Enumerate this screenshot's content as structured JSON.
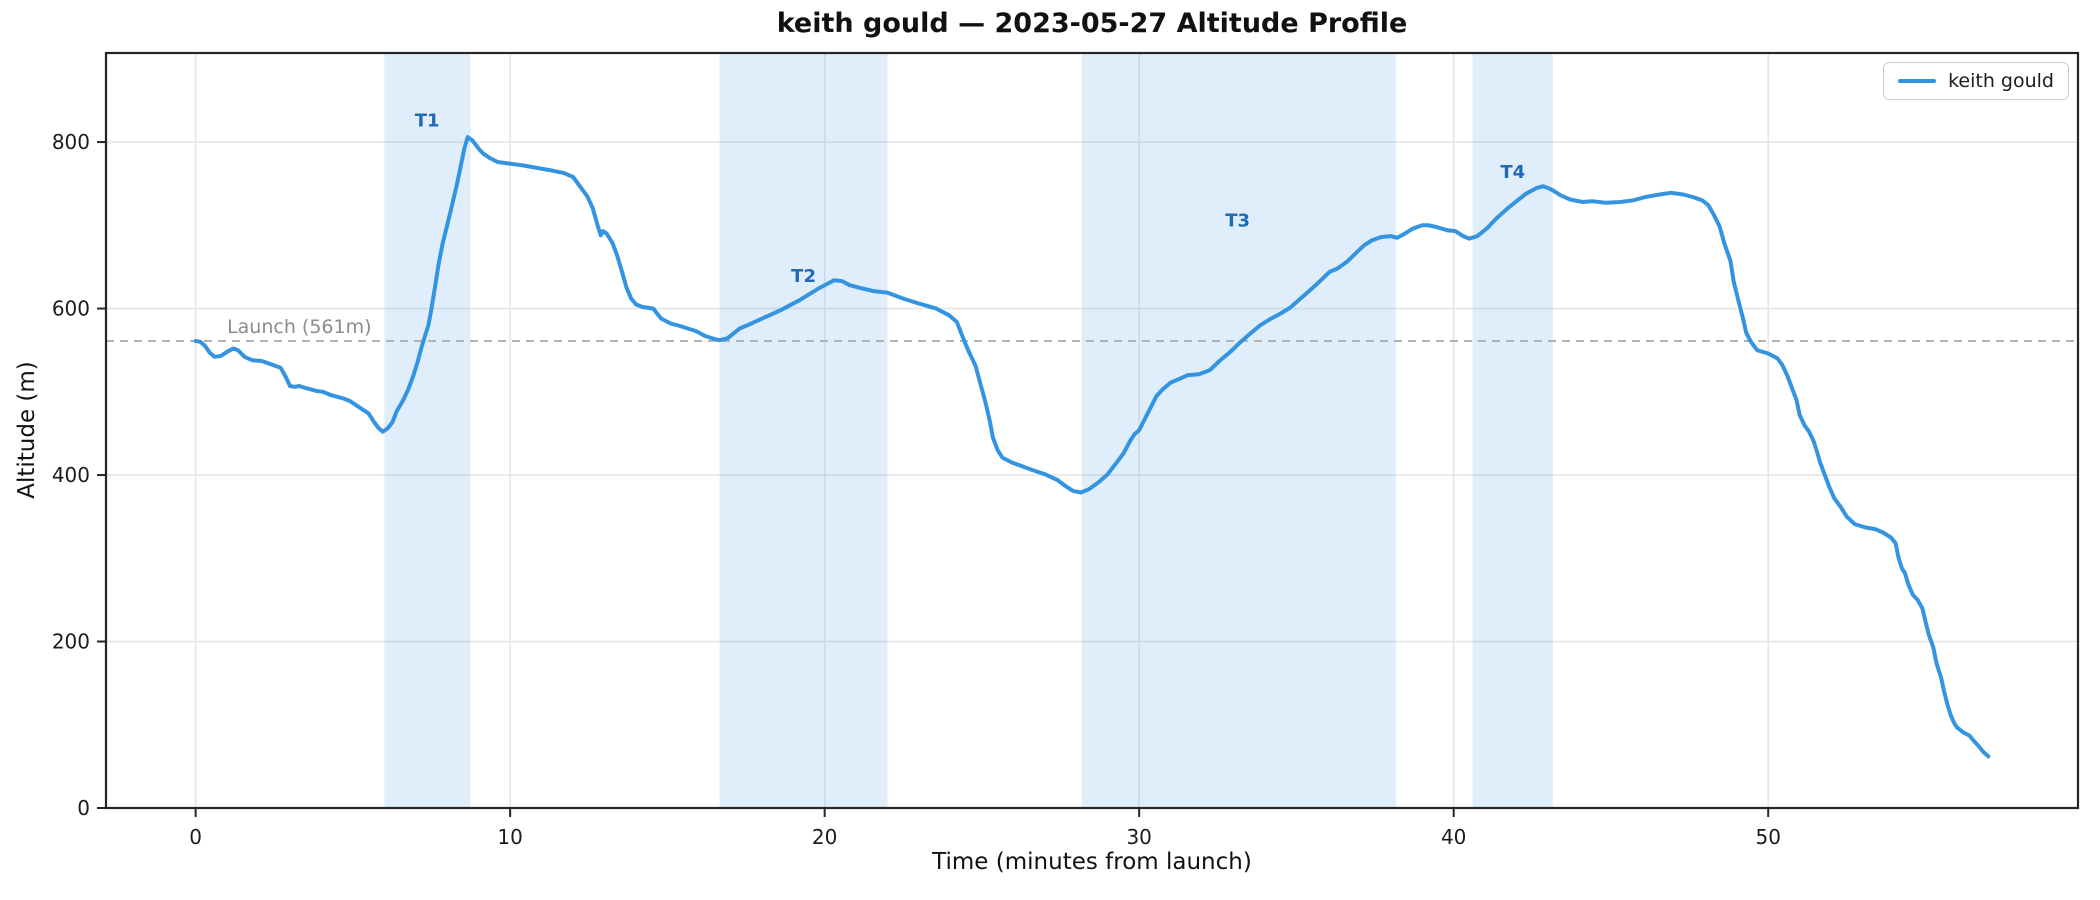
{
  "annotations": {
    "launch_label": "Launch (561m)"
  },
  "colors": {
    "line": "#3594e0",
    "band_fill": "#3594e0",
    "band_opacity": 0.16,
    "thermal_label": "#1f6ab8",
    "launch_line": "#b3b3b3",
    "launch_text": "#8c8c8c",
    "grid": "#e6e6e6",
    "axis": "#262626",
    "tick_text": "#1c1c1c"
  },
  "chart_data": {
    "type": "line",
    "title": "keith gould — 2023-05-27 Altitude Profile",
    "xlabel": "Time (minutes from launch)",
    "ylabel": "Altitude (m)",
    "xlim": [
      -2.85,
      59.85
    ],
    "ylim": [
      0,
      907
    ],
    "xticks": [
      0,
      10,
      20,
      30,
      40,
      50
    ],
    "yticks": [
      0,
      200,
      400,
      600,
      800
    ],
    "grid": true,
    "legend_position": "upper right",
    "launch_altitude": 561,
    "thermal_bands": [
      {
        "name": "T1",
        "start": 6.0,
        "end": 8.74,
        "label_t": 7.36,
        "label_alt": 826
      },
      {
        "name": "T2",
        "start": 16.66,
        "end": 22.0,
        "label_t": 19.33,
        "label_alt": 639
      },
      {
        "name": "T3",
        "start": 28.17,
        "end": 38.16,
        "label_t": 33.13,
        "label_alt": 706
      },
      {
        "name": "T4",
        "start": 40.6,
        "end": 43.15,
        "label_t": 41.88,
        "label_alt": 764
      }
    ],
    "series": [
      {
        "name": "keith gould",
        "points": [
          [
            0,
            561
          ],
          [
            0.15,
            560
          ],
          [
            0.3,
            555
          ],
          [
            0.45,
            547
          ],
          [
            0.6,
            542
          ],
          [
            0.8,
            543
          ],
          [
            1.0,
            548
          ],
          [
            1.2,
            552
          ],
          [
            1.35,
            550
          ],
          [
            1.55,
            542
          ],
          [
            1.8,
            538
          ],
          [
            2.1,
            537
          ],
          [
            2.4,
            533
          ],
          [
            2.7,
            529
          ],
          [
            2.85,
            519
          ],
          [
            3.0,
            507
          ],
          [
            3.15,
            506
          ],
          [
            3.3,
            507
          ],
          [
            3.45,
            505
          ],
          [
            3.65,
            503
          ],
          [
            3.85,
            501
          ],
          [
            4.05,
            500
          ],
          [
            4.3,
            496
          ],
          [
            4.5,
            494
          ],
          [
            4.7,
            492
          ],
          [
            4.9,
            489
          ],
          [
            5.1,
            484
          ],
          [
            5.3,
            479
          ],
          [
            5.5,
            474
          ],
          [
            5.65,
            465
          ],
          [
            5.8,
            457
          ],
          [
            5.95,
            452
          ],
          [
            6.1,
            456
          ],
          [
            6.25,
            463
          ],
          [
            6.4,
            477
          ],
          [
            6.6,
            490
          ],
          [
            6.75,
            502
          ],
          [
            6.9,
            517
          ],
          [
            7.05,
            535
          ],
          [
            7.2,
            556
          ],
          [
            7.4,
            580
          ],
          [
            7.5,
            600
          ],
          [
            7.62,
            628
          ],
          [
            7.72,
            652
          ],
          [
            7.86,
            679
          ],
          [
            8.0,
            700
          ],
          [
            8.15,
            724
          ],
          [
            8.3,
            748
          ],
          [
            8.45,
            775
          ],
          [
            8.55,
            793
          ],
          [
            8.65,
            806
          ],
          [
            8.8,
            802
          ],
          [
            9.0,
            792
          ],
          [
            9.15,
            786
          ],
          [
            9.35,
            781
          ],
          [
            9.6,
            776
          ],
          [
            10.0,
            774
          ],
          [
            10.4,
            772
          ],
          [
            10.85,
            769
          ],
          [
            11.3,
            766
          ],
          [
            11.7,
            763
          ],
          [
            12.0,
            758
          ],
          [
            12.2,
            748
          ],
          [
            12.45,
            735
          ],
          [
            12.62,
            721
          ],
          [
            12.78,
            700
          ],
          [
            12.88,
            688
          ],
          [
            12.95,
            693
          ],
          [
            13.07,
            690
          ],
          [
            13.25,
            679
          ],
          [
            13.4,
            664
          ],
          [
            13.55,
            645
          ],
          [
            13.7,
            625
          ],
          [
            13.85,
            612
          ],
          [
            14.0,
            605
          ],
          [
            14.2,
            602
          ],
          [
            14.55,
            600
          ],
          [
            14.8,
            588
          ],
          [
            15.1,
            582
          ],
          [
            15.4,
            579
          ],
          [
            15.9,
            573
          ],
          [
            16.2,
            567
          ],
          [
            16.45,
            564
          ],
          [
            16.65,
            562
          ],
          [
            16.9,
            564
          ],
          [
            17.1,
            570
          ],
          [
            17.3,
            576
          ],
          [
            17.6,
            581
          ],
          [
            17.95,
            587
          ],
          [
            18.25,
            592
          ],
          [
            18.6,
            598
          ],
          [
            18.9,
            604
          ],
          [
            19.2,
            610
          ],
          [
            19.5,
            617
          ],
          [
            19.85,
            625
          ],
          [
            20.1,
            630
          ],
          [
            20.3,
            634
          ],
          [
            20.55,
            633
          ],
          [
            20.8,
            628
          ],
          [
            21.1,
            625
          ],
          [
            21.55,
            621
          ],
          [
            22.0,
            619
          ],
          [
            22.5,
            612
          ],
          [
            23.0,
            606
          ],
          [
            23.55,
            600
          ],
          [
            23.95,
            592
          ],
          [
            24.2,
            584
          ],
          [
            24.45,
            560
          ],
          [
            24.6,
            547
          ],
          [
            24.8,
            531
          ],
          [
            24.95,
            510
          ],
          [
            25.1,
            489
          ],
          [
            25.25,
            465
          ],
          [
            25.35,
            445
          ],
          [
            25.5,
            430
          ],
          [
            25.65,
            421
          ],
          [
            25.95,
            415
          ],
          [
            26.25,
            411
          ],
          [
            26.6,
            406
          ],
          [
            27.0,
            401
          ],
          [
            27.4,
            394
          ],
          [
            27.65,
            387
          ],
          [
            27.9,
            381
          ],
          [
            28.15,
            379
          ],
          [
            28.4,
            383
          ],
          [
            28.7,
            391
          ],
          [
            29.0,
            401
          ],
          [
            29.2,
            411
          ],
          [
            29.5,
            426
          ],
          [
            29.7,
            440
          ],
          [
            29.85,
            449
          ],
          [
            30.0,
            454
          ],
          [
            30.12,
            463
          ],
          [
            30.35,
            480
          ],
          [
            30.55,
            495
          ],
          [
            30.75,
            503
          ],
          [
            31.0,
            511
          ],
          [
            31.25,
            515
          ],
          [
            31.55,
            520
          ],
          [
            31.9,
            521
          ],
          [
            32.25,
            526
          ],
          [
            32.55,
            537
          ],
          [
            32.9,
            548
          ],
          [
            33.2,
            559
          ],
          [
            33.5,
            569
          ],
          [
            33.85,
            580
          ],
          [
            34.15,
            587
          ],
          [
            34.5,
            594
          ],
          [
            34.8,
            601
          ],
          [
            35.1,
            611
          ],
          [
            35.4,
            621
          ],
          [
            35.75,
            633
          ],
          [
            36.05,
            644
          ],
          [
            36.3,
            648
          ],
          [
            36.6,
            656
          ],
          [
            36.9,
            667
          ],
          [
            37.15,
            676
          ],
          [
            37.4,
            682
          ],
          [
            37.7,
            686
          ],
          [
            38.0,
            687
          ],
          [
            38.2,
            685
          ],
          [
            38.45,
            690
          ],
          [
            38.7,
            696
          ],
          [
            39.0,
            700
          ],
          [
            39.2,
            700
          ],
          [
            39.45,
            698
          ],
          [
            39.8,
            694
          ],
          [
            40.05,
            693
          ],
          [
            40.3,
            687
          ],
          [
            40.5,
            684
          ],
          [
            40.75,
            687
          ],
          [
            41.05,
            696
          ],
          [
            41.35,
            708
          ],
          [
            41.7,
            720
          ],
          [
            42.0,
            729
          ],
          [
            42.3,
            738
          ],
          [
            42.65,
            745
          ],
          [
            42.85,
            747
          ],
          [
            43.05,
            744
          ],
          [
            43.15,
            742
          ],
          [
            43.4,
            736
          ],
          [
            43.7,
            731
          ],
          [
            44.1,
            728
          ],
          [
            44.4,
            729
          ],
          [
            44.85,
            727
          ],
          [
            45.3,
            728
          ],
          [
            45.7,
            730
          ],
          [
            46.1,
            734
          ],
          [
            46.55,
            737
          ],
          [
            46.9,
            739
          ],
          [
            47.3,
            737
          ],
          [
            47.6,
            734
          ],
          [
            47.9,
            730
          ],
          [
            48.1,
            724
          ],
          [
            48.25,
            714
          ],
          [
            48.45,
            699
          ],
          [
            48.6,
            679
          ],
          [
            48.8,
            657
          ],
          [
            48.9,
            633
          ],
          [
            49.05,
            610
          ],
          [
            49.2,
            588
          ],
          [
            49.3,
            571
          ],
          [
            49.45,
            560
          ],
          [
            49.65,
            550
          ],
          [
            50.0,
            546
          ],
          [
            50.3,
            540
          ],
          [
            50.45,
            532
          ],
          [
            50.6,
            520
          ],
          [
            50.75,
            505
          ],
          [
            50.9,
            490
          ],
          [
            51.0,
            472
          ],
          [
            51.15,
            460
          ],
          [
            51.3,
            452
          ],
          [
            51.45,
            440
          ],
          [
            51.55,
            428
          ],
          [
            51.65,
            415
          ],
          [
            51.8,
            400
          ],
          [
            51.95,
            385
          ],
          [
            52.1,
            372
          ],
          [
            52.3,
            362
          ],
          [
            52.5,
            350
          ],
          [
            52.75,
            341
          ],
          [
            53.1,
            337
          ],
          [
            53.4,
            335
          ],
          [
            53.65,
            331
          ],
          [
            53.9,
            325
          ],
          [
            54.05,
            318
          ],
          [
            54.15,
            300
          ],
          [
            54.25,
            288
          ],
          [
            54.35,
            282
          ],
          [
            54.45,
            269
          ],
          [
            54.6,
            256
          ],
          [
            54.75,
            250
          ],
          [
            54.9,
            240
          ],
          [
            55.0,
            224
          ],
          [
            55.1,
            209
          ],
          [
            55.25,
            193
          ],
          [
            55.35,
            174
          ],
          [
            55.5,
            156
          ],
          [
            55.6,
            139
          ],
          [
            55.7,
            124
          ],
          [
            55.8,
            112
          ],
          [
            55.9,
            103
          ],
          [
            56.0,
            97
          ],
          [
            56.2,
            91
          ],
          [
            56.4,
            87
          ],
          [
            56.55,
            80
          ],
          [
            56.7,
            74
          ],
          [
            56.85,
            67
          ],
          [
            57.0,
            62
          ]
        ]
      }
    ]
  }
}
